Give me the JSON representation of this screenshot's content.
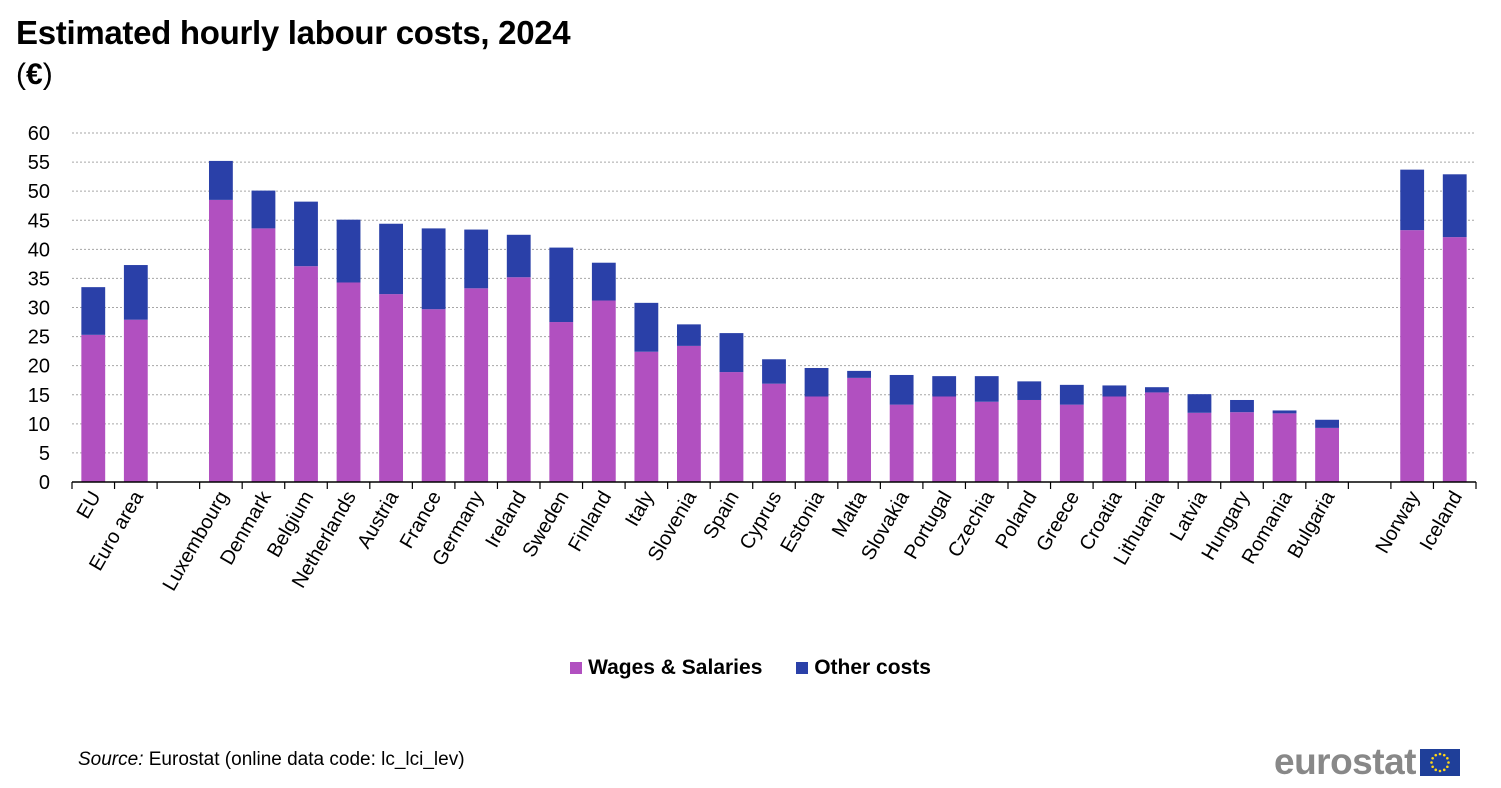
{
  "header": {
    "title": "Estimated hourly labour costs, 2024",
    "unit_open": "(",
    "unit_symbol": "€",
    "unit_close": ")"
  },
  "colors": {
    "wages": "#b150c0",
    "other": "#2a40a8",
    "grid": "#a6a6a6",
    "axis": "#000000"
  },
  "legend": {
    "wages_label": "Wages & Salaries",
    "other_label": "Other costs"
  },
  "footer": {
    "source_label": "Source:",
    "source_text": " Eurostat (online data code: lc_lci_lev)",
    "logo_text": "eurostat"
  },
  "chart_data": {
    "type": "bar",
    "stacked": true,
    "title": "Estimated hourly labour costs, 2024",
    "subtitle": "(€)",
    "ylim": [
      0,
      60
    ],
    "yticks": [
      0,
      5,
      10,
      15,
      20,
      25,
      30,
      35,
      40,
      45,
      50,
      55,
      60
    ],
    "grid": true,
    "legend_position": "bottom",
    "groups": [
      [
        "EU",
        "Euro area"
      ],
      [
        "Luxembourg",
        "Denmark",
        "Belgium",
        "Netherlands",
        "Austria",
        "France",
        "Germany",
        "Ireland",
        "Sweden",
        "Finland",
        "Italy",
        "Slovenia",
        "Spain",
        "Cyprus",
        "Estonia",
        "Malta",
        "Slovakia",
        "Portugal",
        "Czechia",
        "Poland",
        "Greece",
        "Croatia",
        "Lithuania",
        "Latvia",
        "Hungary",
        "Romania",
        "Bulgaria"
      ],
      [
        "Norway",
        "Iceland"
      ]
    ],
    "series": [
      {
        "name": "Wages & Salaries",
        "values": [
          25.3,
          27.9,
          48.5,
          43.6,
          37.1,
          34.3,
          32.3,
          29.7,
          33.3,
          35.2,
          27.5,
          31.2,
          22.4,
          23.4,
          18.9,
          16.9,
          14.7,
          17.9,
          13.3,
          14.7,
          13.8,
          14.1,
          13.3,
          14.7,
          15.4,
          11.9,
          12.0,
          11.8,
          9.3,
          43.3,
          42.1
        ]
      },
      {
        "name": "Other costs",
        "values": [
          8.2,
          9.4,
          6.7,
          6.5,
          11.1,
          10.8,
          12.1,
          13.9,
          10.1,
          7.3,
          12.8,
          6.5,
          8.4,
          3.7,
          6.7,
          4.2,
          4.9,
          1.2,
          5.1,
          3.5,
          4.4,
          3.2,
          3.4,
          1.9,
          0.9,
          3.2,
          2.1,
          0.5,
          1.4,
          10.4,
          10.8
        ]
      }
    ]
  }
}
